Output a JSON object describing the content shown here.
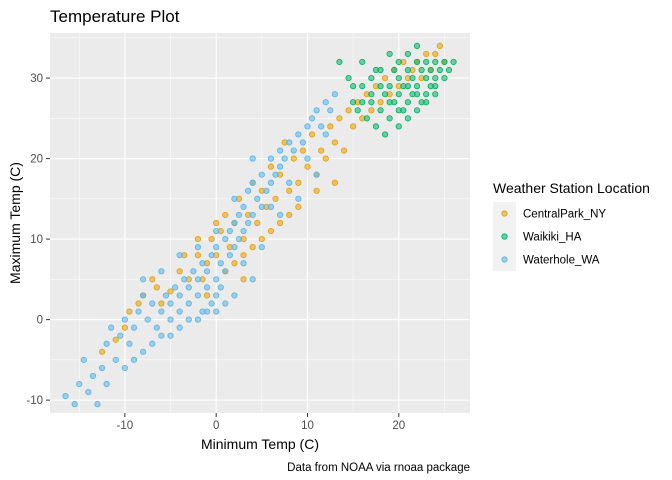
{
  "chart_data": {
    "type": "scatter",
    "title": "Temperature Plot",
    "xlabel": "Minimum Temp (C)",
    "ylabel": "Maximum Temp (C)",
    "caption": "Data from NOAA via rnoaa package",
    "legend_title": "Weather Station Location",
    "legend_position": "right",
    "grid": true,
    "xlim": [
      -18.2,
      27.8
    ],
    "ylim": [
      -11.6,
      35.6
    ],
    "x_ticks": [
      -10,
      0,
      10,
      20
    ],
    "y_ticks": [
      -10,
      0,
      10,
      20,
      30
    ],
    "x_tick_labels": [
      "-10",
      "0",
      "10",
      "20"
    ],
    "y_tick_labels": [
      "-10",
      "0",
      "10",
      "20",
      "30"
    ],
    "colors": {
      "panel": "#ebebeb",
      "grid_major": "#ffffff",
      "CentralPark_NY": "#E69F00",
      "Waikiki_HA": "#00B064",
      "Waterhole_WA": "#56B4E9"
    },
    "series": [
      {
        "name": "CentralPark_NY",
        "points": [
          [
            -12.5,
            -4
          ],
          [
            -11,
            -2.5
          ],
          [
            -10,
            -1
          ],
          [
            -9.5,
            1
          ],
          [
            -8.5,
            2
          ],
          [
            -8,
            3
          ],
          [
            -7,
            5
          ],
          [
            -6.5,
            4
          ],
          [
            -6,
            2
          ],
          [
            -5,
            3.5
          ],
          [
            -4,
            6
          ],
          [
            -3.5,
            8
          ],
          [
            -3,
            5
          ],
          [
            -2,
            8
          ],
          [
            -1.5,
            5
          ],
          [
            -1,
            7
          ],
          [
            -0.5,
            10
          ],
          [
            0,
            8
          ],
          [
            0.5,
            11
          ],
          [
            1,
            13
          ],
          [
            1.5,
            9
          ],
          [
            2,
            12
          ],
          [
            2.5,
            15
          ],
          [
            3,
            10
          ],
          [
            3.5,
            13
          ],
          [
            4,
            17
          ],
          [
            4.5,
            12
          ],
          [
            5,
            16
          ],
          [
            5.5,
            14
          ],
          [
            6,
            19
          ],
          [
            6.5,
            15
          ],
          [
            7,
            18
          ],
          [
            7.5,
            22
          ],
          [
            8,
            16
          ],
          [
            8.5,
            20
          ],
          [
            9,
            17
          ],
          [
            9.5,
            21
          ],
          [
            10,
            19
          ],
          [
            10.5,
            23
          ],
          [
            11,
            18
          ],
          [
            11.5,
            21
          ],
          [
            12,
            20
          ],
          [
            12.5,
            24
          ],
          [
            13,
            22
          ],
          [
            13.5,
            25
          ],
          [
            14,
            21
          ],
          [
            14.5,
            26
          ],
          [
            15,
            24
          ],
          [
            15.5,
            27
          ],
          [
            16,
            25
          ],
          [
            16.5,
            28
          ],
          [
            17,
            26
          ],
          [
            17.5,
            29
          ],
          [
            18,
            27
          ],
          [
            18.5,
            30
          ],
          [
            19,
            28
          ],
          [
            19.5,
            31
          ],
          [
            20,
            29
          ],
          [
            20.5,
            32
          ],
          [
            21,
            30
          ],
          [
            21.5,
            31
          ],
          [
            22,
            32
          ],
          [
            22.5,
            30
          ],
          [
            23,
            33
          ],
          [
            23.5,
            31
          ],
          [
            24,
            33
          ],
          [
            24.5,
            34
          ],
          [
            25,
            32
          ],
          [
            0,
            12
          ],
          [
            -2,
            10
          ],
          [
            2,
            7
          ],
          [
            4,
            9
          ],
          [
            6,
            11
          ],
          [
            8,
            13
          ],
          [
            1,
            6
          ],
          [
            3,
            8
          ],
          [
            5,
            10
          ],
          [
            7,
            12
          ],
          [
            9,
            14
          ],
          [
            11,
            16
          ],
          [
            -1,
            3
          ],
          [
            3,
            5
          ],
          [
            13,
            17
          ]
        ]
      },
      {
        "name": "Waikiki_HA",
        "points": [
          [
            13.5,
            32
          ],
          [
            14.5,
            30
          ],
          [
            15,
            27
          ],
          [
            15.5,
            26
          ],
          [
            16,
            29
          ],
          [
            16.5,
            25
          ],
          [
            17,
            27
          ],
          [
            17.5,
            24
          ],
          [
            17.5,
            31
          ],
          [
            18,
            26
          ],
          [
            18.5,
            28
          ],
          [
            18.5,
            23
          ],
          [
            19,
            25
          ],
          [
            19,
            29
          ],
          [
            19.5,
            27
          ],
          [
            19.5,
            31
          ],
          [
            20,
            24
          ],
          [
            20,
            28
          ],
          [
            20,
            30
          ],
          [
            20.5,
            26
          ],
          [
            20.5,
            29
          ],
          [
            21,
            27
          ],
          [
            21,
            31
          ],
          [
            21,
            25
          ],
          [
            21.5,
            28
          ],
          [
            21.5,
            30
          ],
          [
            22,
            26
          ],
          [
            22,
            29
          ],
          [
            22,
            32
          ],
          [
            22.5,
            27
          ],
          [
            22.5,
            31
          ],
          [
            23,
            28
          ],
          [
            23,
            30
          ],
          [
            23,
            32
          ],
          [
            23.5,
            29
          ],
          [
            23.5,
            31
          ],
          [
            24,
            30
          ],
          [
            24,
            32
          ],
          [
            24.5,
            31
          ],
          [
            25,
            30
          ],
          [
            25,
            32
          ],
          [
            25.5,
            31
          ],
          [
            26,
            32
          ],
          [
            16,
            32
          ],
          [
            17,
            30
          ],
          [
            18,
            29
          ],
          [
            19,
            33
          ],
          [
            20,
            32
          ],
          [
            21,
            33
          ],
          [
            22,
            34
          ],
          [
            18,
            31
          ],
          [
            20,
            26
          ],
          [
            22,
            28
          ],
          [
            24,
            28
          ],
          [
            17,
            28
          ],
          [
            15,
            29
          ],
          [
            16,
            27
          ],
          [
            19,
            27
          ],
          [
            21,
            29
          ],
          [
            23,
            27
          ],
          [
            24,
            29
          ]
        ]
      },
      {
        "name": "Waterhole_WA",
        "points": [
          [
            -16.5,
            -9.5
          ],
          [
            -15.5,
            -10.5
          ],
          [
            -15,
            -8
          ],
          [
            -14.5,
            -5
          ],
          [
            -13.5,
            -7
          ],
          [
            -13,
            -10.5
          ],
          [
            -12.5,
            -6
          ],
          [
            -12,
            -3
          ],
          [
            -11.5,
            -1
          ],
          [
            -11,
            -5
          ],
          [
            -10.5,
            -2
          ],
          [
            -10,
            0
          ],
          [
            -9.5,
            -3
          ],
          [
            -9,
            -1
          ],
          [
            -8.5,
            1
          ],
          [
            -8,
            3
          ],
          [
            -7.5,
            0
          ],
          [
            -7,
            2
          ],
          [
            -6.5,
            -1
          ],
          [
            -6,
            1
          ],
          [
            -5.5,
            3
          ],
          [
            -5,
            0
          ],
          [
            -5,
            2
          ],
          [
            -4.5,
            4
          ],
          [
            -4,
            1
          ],
          [
            -4,
            3
          ],
          [
            -3.5,
            5
          ],
          [
            -3,
            2
          ],
          [
            -3,
            4
          ],
          [
            -2.5,
            6
          ],
          [
            -2,
            3
          ],
          [
            -2,
            5
          ],
          [
            -1.5,
            1
          ],
          [
            -1.5,
            7
          ],
          [
            -1,
            4
          ],
          [
            -1,
            6
          ],
          [
            -0.5,
            2
          ],
          [
            -0.5,
            8
          ],
          [
            0,
            3
          ],
          [
            0,
            5
          ],
          [
            0,
            9
          ],
          [
            0.5,
            4
          ],
          [
            0.5,
            7
          ],
          [
            1,
            6
          ],
          [
            1,
            10
          ],
          [
            1.5,
            8
          ],
          [
            1.5,
            11
          ],
          [
            2,
            9
          ],
          [
            2,
            12
          ],
          [
            2.5,
            10
          ],
          [
            2.5,
            13
          ],
          [
            3,
            11
          ],
          [
            3,
            14
          ],
          [
            3.5,
            12
          ],
          [
            3.5,
            16
          ],
          [
            4,
            13
          ],
          [
            4,
            17
          ],
          [
            4.5,
            15
          ],
          [
            5,
            14
          ],
          [
            5,
            18
          ],
          [
            5.5,
            16
          ],
          [
            6,
            17
          ],
          [
            6,
            20
          ],
          [
            6.5,
            18
          ],
          [
            7,
            19
          ],
          [
            7,
            21
          ],
          [
            7.5,
            20
          ],
          [
            8,
            22
          ],
          [
            8.5,
            21
          ],
          [
            9,
            23
          ],
          [
            9.5,
            22
          ],
          [
            10,
            24
          ],
          [
            10.5,
            25
          ],
          [
            11,
            26
          ],
          [
            11.5,
            24
          ],
          [
            12,
            27
          ],
          [
            12.5,
            26
          ],
          [
            13,
            28
          ],
          [
            -14,
            -9
          ],
          [
            -12,
            -8
          ],
          [
            -10,
            -6
          ],
          [
            -8,
            -4
          ],
          [
            -6,
            -2
          ],
          [
            -4,
            -1
          ],
          [
            -2,
            0
          ],
          [
            0,
            1
          ],
          [
            2,
            3
          ],
          [
            4,
            5
          ],
          [
            -3,
            0
          ],
          [
            -1,
            1
          ],
          [
            1,
            2
          ],
          [
            -7,
            -3
          ],
          [
            -9,
            -5
          ],
          [
            -5,
            -2
          ],
          [
            3,
            7
          ],
          [
            5,
            9
          ],
          [
            7,
            13
          ],
          [
            9,
            15
          ],
          [
            11,
            18
          ],
          [
            2,
            15
          ],
          [
            6,
            14
          ],
          [
            8,
            17
          ],
          [
            -8,
            5
          ],
          [
            -6,
            6
          ],
          [
            -4,
            8
          ],
          [
            -2,
            9
          ],
          [
            0,
            11
          ],
          [
            4,
            20
          ],
          [
            10,
            20
          ],
          [
            12,
            23
          ]
        ]
      }
    ]
  }
}
